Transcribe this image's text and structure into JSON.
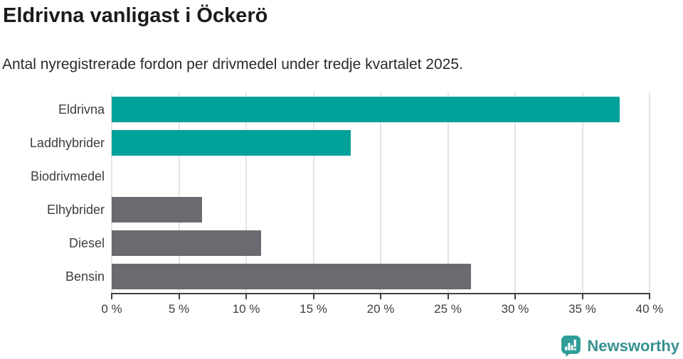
{
  "chart_data": {
    "type": "bar",
    "orientation": "horizontal",
    "title": "Eldrivna vanligast i Öckerö",
    "subtitle": "Antal nyregistrerade fordon per drivmedel under tredje kvartalet 2025.",
    "categories": [
      "Eldrivna",
      "Laddhybrider",
      "Biodrivmedel",
      "Elhybrider",
      "Diesel",
      "Bensin"
    ],
    "values": [
      37.8,
      17.8,
      0,
      6.7,
      11.1,
      26.7
    ],
    "unit": "%",
    "xlabel": "",
    "ylabel": "",
    "xlim": [
      0,
      40
    ],
    "x_ticks": [
      0,
      5,
      10,
      15,
      20,
      25,
      30,
      35,
      40
    ],
    "x_tick_labels": [
      "0 %",
      "5 %",
      "10 %",
      "15 %",
      "20 %",
      "25 %",
      "30 %",
      "35 %",
      "40 %"
    ],
    "bar_colors": [
      "#00a19a",
      "#00a19a",
      "#6a6b70",
      "#6a6b70",
      "#6a6b70",
      "#6a6b70"
    ],
    "highlight_color": "#00a19a",
    "default_color": "#6a6b70",
    "grid": "vertical",
    "gridline_color": "#e4e4e5",
    "axis_color": "#404045",
    "legend": "none"
  },
  "footer": {
    "brand": "Newsworthy",
    "brand_color": "#37918e",
    "icon": "newsworthy-bar-chart-speech-bubble-icon",
    "icon_color": "#2f9d97"
  }
}
